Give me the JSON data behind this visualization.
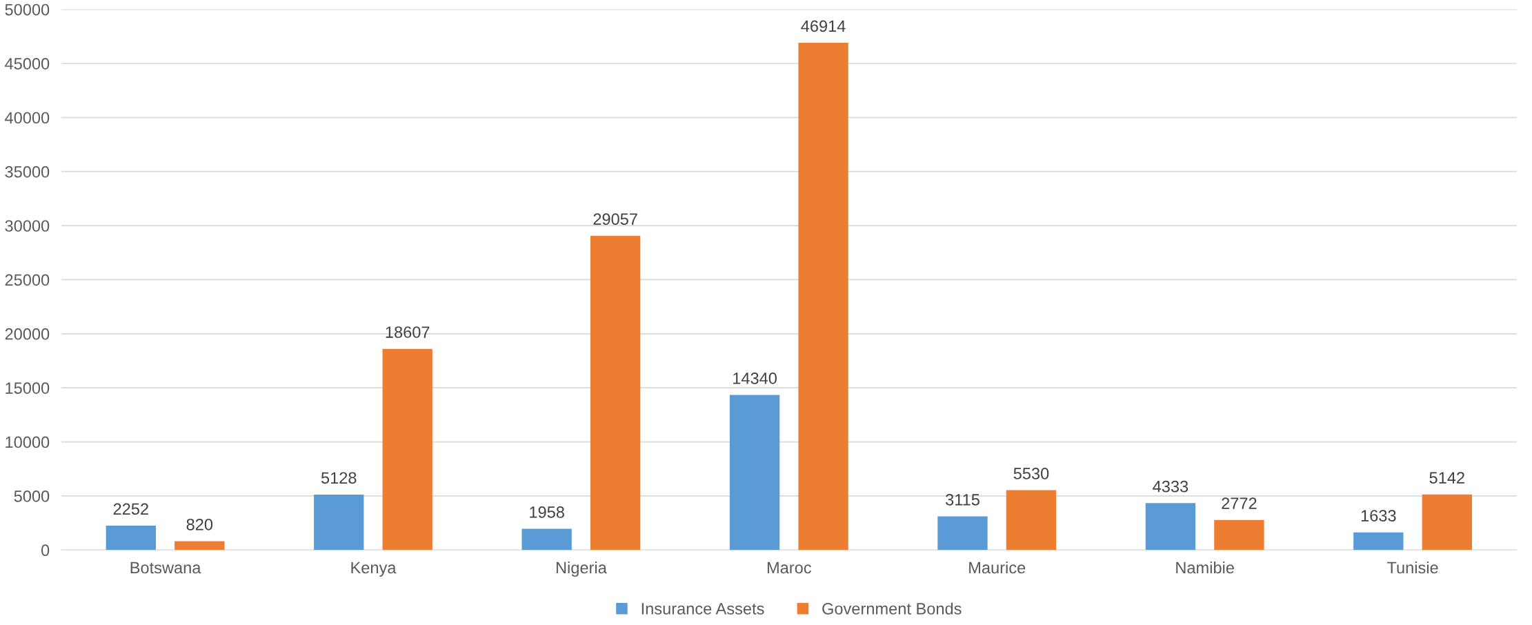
{
  "chart_data": {
    "type": "bar",
    "categories": [
      "Botswana",
      "Kenya",
      "Nigeria",
      "Maroc",
      "Maurice",
      "Namibie",
      "Tunisie"
    ],
    "series": [
      {
        "name": "Insurance Assets",
        "color": "#5b9bd5",
        "values": [
          2252,
          5128,
          1958,
          14340,
          3115,
          4333,
          1633
        ]
      },
      {
        "name": "Government Bonds",
        "color": "#ed7d31",
        "values": [
          820,
          18607,
          29057,
          46914,
          5530,
          2772,
          5142
        ]
      }
    ],
    "ylim": [
      0,
      50000
    ],
    "yticks": [
      0,
      5000,
      10000,
      15000,
      20000,
      25000,
      30000,
      35000,
      40000,
      45000,
      50000
    ],
    "grid": "y",
    "legend": "bottom",
    "data_labels": true
  }
}
